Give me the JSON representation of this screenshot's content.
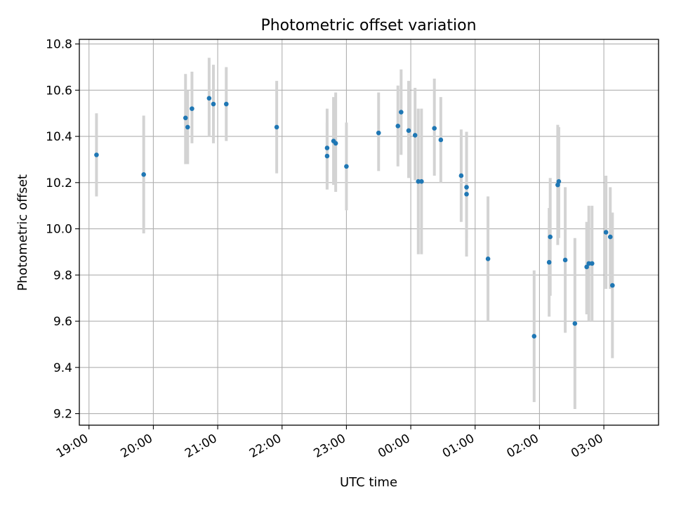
{
  "colors": {
    "point": "#1f77b4",
    "errorbar": "#d3d3d3",
    "grid": "#b0b0b0",
    "axes": "#000000"
  },
  "chart_data": {
    "type": "scatter",
    "title": "Photometric offset variation",
    "xlabel": "UTC time",
    "ylabel": "Photometric offset",
    "grid": true,
    "x_axis": {
      "kind": "time",
      "range": [
        "18:51",
        "03:51"
      ],
      "ticks": [
        "19:00",
        "20:00",
        "21:00",
        "22:00",
        "23:00",
        "00:00",
        "01:00",
        "02:00",
        "03:00"
      ]
    },
    "y_axis": {
      "range": [
        9.15,
        10.82
      ],
      "ticks": [
        "9.2",
        "9.4",
        "9.6",
        "9.8",
        "10.0",
        "10.2",
        "10.4",
        "10.6",
        "10.8"
      ]
    },
    "series": [
      {
        "marker": "point",
        "errorbars": "y",
        "points": [
          {
            "x": "19:07",
            "y": 10.32,
            "ylo": 10.14,
            "yhi": 10.5
          },
          {
            "x": "19:51",
            "y": 10.235,
            "ylo": 9.98,
            "yhi": 10.49
          },
          {
            "x": "20:30",
            "y": 10.48,
            "ylo": 10.28,
            "yhi": 10.67
          },
          {
            "x": "20:32",
            "y": 10.44,
            "ylo": 10.28,
            "yhi": 10.6
          },
          {
            "x": "20:36",
            "y": 10.52,
            "ylo": 10.37,
            "yhi": 10.68
          },
          {
            "x": "20:52",
            "y": 10.565,
            "ylo": 10.4,
            "yhi": 10.74
          },
          {
            "x": "20:56",
            "y": 10.54,
            "ylo": 10.37,
            "yhi": 10.71
          },
          {
            "x": "21:08",
            "y": 10.54,
            "ylo": 10.38,
            "yhi": 10.7
          },
          {
            "x": "21:55",
            "y": 10.44,
            "ylo": 10.24,
            "yhi": 10.64
          },
          {
            "x": "22:42",
            "y": 10.35,
            "ylo": 10.17,
            "yhi": 10.52
          },
          {
            "x": "22:42",
            "y": 10.315,
            "ylo": 10.17,
            "yhi": 10.46
          },
          {
            "x": "22:48",
            "y": 10.38,
            "ylo": 10.19,
            "yhi": 10.57
          },
          {
            "x": "22:50",
            "y": 10.37,
            "ylo": 10.16,
            "yhi": 10.59
          },
          {
            "x": "23:00",
            "y": 10.27,
            "ylo": 10.08,
            "yhi": 10.46
          },
          {
            "x": "23:30",
            "y": 10.415,
            "ylo": 10.25,
            "yhi": 10.59
          },
          {
            "x": "23:48",
            "y": 10.445,
            "ylo": 10.27,
            "yhi": 10.62
          },
          {
            "x": "23:51",
            "y": 10.505,
            "ylo": 10.32,
            "yhi": 10.69
          },
          {
            "x": "23:58",
            "y": 10.425,
            "ylo": 10.22,
            "yhi": 10.64
          },
          {
            "x": "00:04",
            "y": 10.405,
            "ylo": 10.21,
            "yhi": 10.61
          },
          {
            "x": "00:07",
            "y": 10.205,
            "ylo": 9.89,
            "yhi": 10.52
          },
          {
            "x": "00:10",
            "y": 10.205,
            "ylo": 9.89,
            "yhi": 10.52
          },
          {
            "x": "00:22",
            "y": 10.435,
            "ylo": 10.23,
            "yhi": 10.65
          },
          {
            "x": "00:28",
            "y": 10.385,
            "ylo": 10.2,
            "yhi": 10.57
          },
          {
            "x": "00:47",
            "y": 10.23,
            "ylo": 10.03,
            "yhi": 10.43
          },
          {
            "x": "00:52",
            "y": 10.18,
            "ylo": 9.96,
            "yhi": 10.42
          },
          {
            "x": "00:52",
            "y": 10.15,
            "ylo": 9.88,
            "yhi": 10.42
          },
          {
            "x": "01:12",
            "y": 9.87,
            "ylo": 9.6,
            "yhi": 10.14
          },
          {
            "x": "01:55",
            "y": 9.535,
            "ylo": 9.25,
            "yhi": 9.82
          },
          {
            "x": "02:09",
            "y": 9.855,
            "ylo": 9.62,
            "yhi": 10.09
          },
          {
            "x": "02:10",
            "y": 9.965,
            "ylo": 9.71,
            "yhi": 10.22
          },
          {
            "x": "02:17",
            "y": 10.19,
            "ylo": 9.93,
            "yhi": 10.45
          },
          {
            "x": "02:18",
            "y": 10.205,
            "ylo": 9.96,
            "yhi": 10.44
          },
          {
            "x": "02:24",
            "y": 9.865,
            "ylo": 9.55,
            "yhi": 10.18
          },
          {
            "x": "02:33",
            "y": 9.59,
            "ylo": 9.22,
            "yhi": 9.96
          },
          {
            "x": "02:44",
            "y": 9.835,
            "ylo": 9.63,
            "yhi": 10.03
          },
          {
            "x": "02:46",
            "y": 9.85,
            "ylo": 9.6,
            "yhi": 10.1
          },
          {
            "x": "02:49",
            "y": 9.85,
            "ylo": 9.6,
            "yhi": 10.1
          },
          {
            "x": "03:02",
            "y": 9.985,
            "ylo": 9.74,
            "yhi": 10.23
          },
          {
            "x": "03:06",
            "y": 9.965,
            "ylo": 9.74,
            "yhi": 10.18
          },
          {
            "x": "03:08",
            "y": 9.755,
            "ylo": 9.44,
            "yhi": 10.07
          }
        ]
      }
    ]
  }
}
